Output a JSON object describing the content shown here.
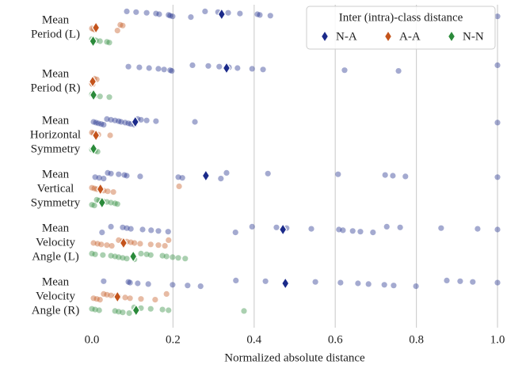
{
  "chart_data": {
    "type": "strip",
    "x_label": "Normalized absolute distance",
    "legend_title": "Inter (intra)-class distance",
    "legend": "upper right",
    "grid": true,
    "xlim": [
      0,
      1
    ],
    "xticks": [
      {
        "value": 0,
        "label": "0.0"
      },
      0.2,
      0.4,
      0.6,
      0.8,
      {
        "value": 1,
        "label": "1.0"
      }
    ],
    "categories": [
      [
        "Mean",
        "Period (L)"
      ],
      [
        "Mean",
        "Period (R)"
      ],
      [
        "Mean",
        "Horizontal",
        "Symmetry"
      ],
      [
        "Mean",
        "Vertical",
        "Symmetry"
      ],
      [
        "Mean",
        "Velocity",
        "Angle (L)"
      ],
      [
        "Mean",
        "Velocity",
        "Angle (R)"
      ]
    ],
    "series": [
      {
        "name": "N-A",
        "color": "#1b2a8a",
        "means": [
          0.32,
          0.332,
          0.107,
          0.281,
          0.471,
          0.477
        ],
        "points": [
          [
            0.086,
            0.109,
            0.135,
            0.158,
            0.166,
            0.189,
            0.193,
            0.199,
            0.244,
            0.279,
            0.311,
            0.336,
            0.365,
            0.408,
            0.414,
            0.44,
            1.0
          ],
          [
            0.09,
            0.117,
            0.141,
            0.164,
            0.178,
            0.193,
            0.197,
            0.248,
            0.287,
            0.314,
            0.338,
            0.359,
            0.395,
            0.422,
            0.623,
            0.756,
            1.0
          ],
          [
            0.004,
            0.01,
            0.016,
            0.023,
            0.029,
            0.037,
            0.047,
            0.057,
            0.066,
            0.072,
            0.082,
            0.09,
            0.096,
            0.105,
            0.113,
            0.121,
            0.135,
            0.158,
            0.254,
            1.0
          ],
          [
            0.008,
            0.018,
            0.029,
            0.039,
            0.047,
            0.066,
            0.08,
            0.086,
            0.119,
            0.213,
            0.223,
            0.318,
            0.332,
            0.434,
            0.607,
            0.723,
            0.742,
            0.773,
            1.0
          ],
          [
            0.025,
            0.047,
            0.076,
            0.086,
            0.096,
            0.125,
            0.146,
            0.164,
            0.188,
            0.354,
            0.395,
            0.455,
            0.48,
            0.541,
            0.609,
            0.619,
            0.643,
            0.662,
            0.693,
            0.727,
            0.76,
            0.861,
            0.951,
            1.0
          ],
          [
            0.029,
            0.09,
            0.094,
            0.113,
            0.139,
            0.199,
            0.236,
            0.268,
            0.355,
            0.428,
            0.551,
            0.613,
            0.656,
            0.682,
            0.721,
            0.744,
            0.799,
            0.875,
            0.908,
            0.939,
            1.0
          ]
        ]
      },
      {
        "name": "A-A",
        "color": "#c4541c",
        "means": [
          0.01,
          0.002,
          0.01,
          0.021,
          0.078,
          0.063
        ],
        "points": [
          [
            0,
            0.004,
            0.008,
            0.063,
            0.07,
            0.076
          ],
          [
            0,
            0.002,
            0.006,
            0.012
          ],
          [
            0,
            0.004,
            0.008,
            0.016,
            0.045
          ],
          [
            0,
            0.006,
            0.012,
            0.02,
            0.029,
            0.039,
            0.053,
            0.215
          ],
          [
            0.004,
            0.014,
            0.023,
            0.037,
            0.049,
            0.066,
            0.076,
            0.086,
            0.096,
            0.105,
            0.119,
            0.145,
            0.164,
            0.18,
            0.189
          ],
          [
            0.004,
            0.012,
            0.02,
            0.029,
            0.037,
            0.047,
            0.059,
            0.066,
            0.082,
            0.094,
            0.121,
            0.156,
            0.184
          ]
        ]
      },
      {
        "name": "N-N",
        "color": "#2a8a3a",
        "means": [
          0.003,
          0.004,
          0.004,
          0.025,
          0.102,
          0.109
        ],
        "points": [
          [
            0,
            0.004,
            0.01,
            0.02,
            0.037,
            0.043
          ],
          [
            0,
            0.002,
            0.006,
            0.02,
            0.043
          ],
          [
            0,
            0.004,
            0.008,
            0.014
          ],
          [
            0,
            0.006,
            0.012,
            0.018,
            0.027,
            0.037,
            0.047,
            0.057,
            0.063
          ],
          [
            0,
            0.008,
            0.027,
            0.047,
            0.057,
            0.066,
            0.076,
            0.086,
            0.105,
            0.121,
            0.135,
            0.145,
            0.174,
            0.184,
            0.199,
            0.213,
            0.23
          ],
          [
            0,
            0.008,
            0.018,
            0.057,
            0.066,
            0.076,
            0.092,
            0.104,
            0.121,
            0.145,
            0.174,
            0.189,
            0.375
          ]
        ]
      }
    ]
  }
}
